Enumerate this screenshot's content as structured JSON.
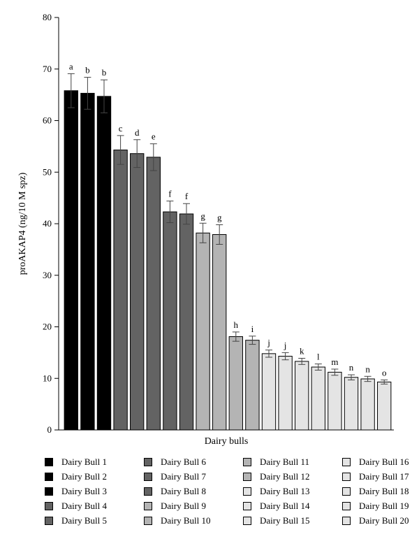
{
  "chart_data": {
    "type": "bar",
    "title": "",
    "xlabel": "Dairy bulls",
    "ylabel": "proAKAP4 (ng/10 M spz)",
    "ylim": [
      0,
      80
    ],
    "yticks": [
      0,
      10,
      20,
      30,
      40,
      50,
      60,
      70,
      80
    ],
    "grid": false,
    "legend_position": "bottom",
    "categories": [
      "Dairy Bull 1",
      "Dairy Bull 2",
      "Dairy Bull 3",
      "Dairy Bull 4",
      "Dairy Bull 5",
      "Dairy Bull 6",
      "Dairy Bull 7",
      "Dairy Bull 8",
      "Dairy Bull 9",
      "Dairy Bull 10",
      "Dairy Bull 11",
      "Dairy Bull 12",
      "Dairy Bull 13",
      "Dairy Bull 14",
      "Dairy Bull 15",
      "Dairy Bull 16",
      "Dairy Bull 17",
      "Dairy Bull 18",
      "Dairy Bull 19",
      "Dairy Bull 20"
    ],
    "values": [
      65.8,
      65.3,
      64.7,
      54.3,
      53.6,
      52.9,
      42.3,
      41.9,
      38.2,
      37.9,
      18.1,
      17.4,
      14.8,
      14.3,
      13.3,
      12.2,
      11.2,
      10.2,
      9.9,
      9.3
    ],
    "errors": [
      3.3,
      3.1,
      3.2,
      2.8,
      2.7,
      2.6,
      2.1,
      2.0,
      1.9,
      1.9,
      0.9,
      0.8,
      0.7,
      0.7,
      0.6,
      0.6,
      0.6,
      0.5,
      0.5,
      0.4
    ],
    "significance_labels": [
      "a",
      "b",
      "b",
      "c",
      "d",
      "e",
      "f",
      "f",
      "g",
      "g",
      "h",
      "i",
      "j",
      "j",
      "k",
      "l",
      "m",
      "n",
      "n",
      "o"
    ],
    "bar_colors": [
      "#000000",
      "#000000",
      "#000000",
      "#636363",
      "#636363",
      "#636363",
      "#636363",
      "#636363",
      "#b4b4b4",
      "#b4b4b4",
      "#b4b4b4",
      "#b4b4b4",
      "#e4e4e4",
      "#e4e4e4",
      "#e4e4e4",
      "#e4e4e4",
      "#e4e4e4",
      "#e4e4e4",
      "#e4e4e4",
      "#e4e4e4"
    ]
  }
}
